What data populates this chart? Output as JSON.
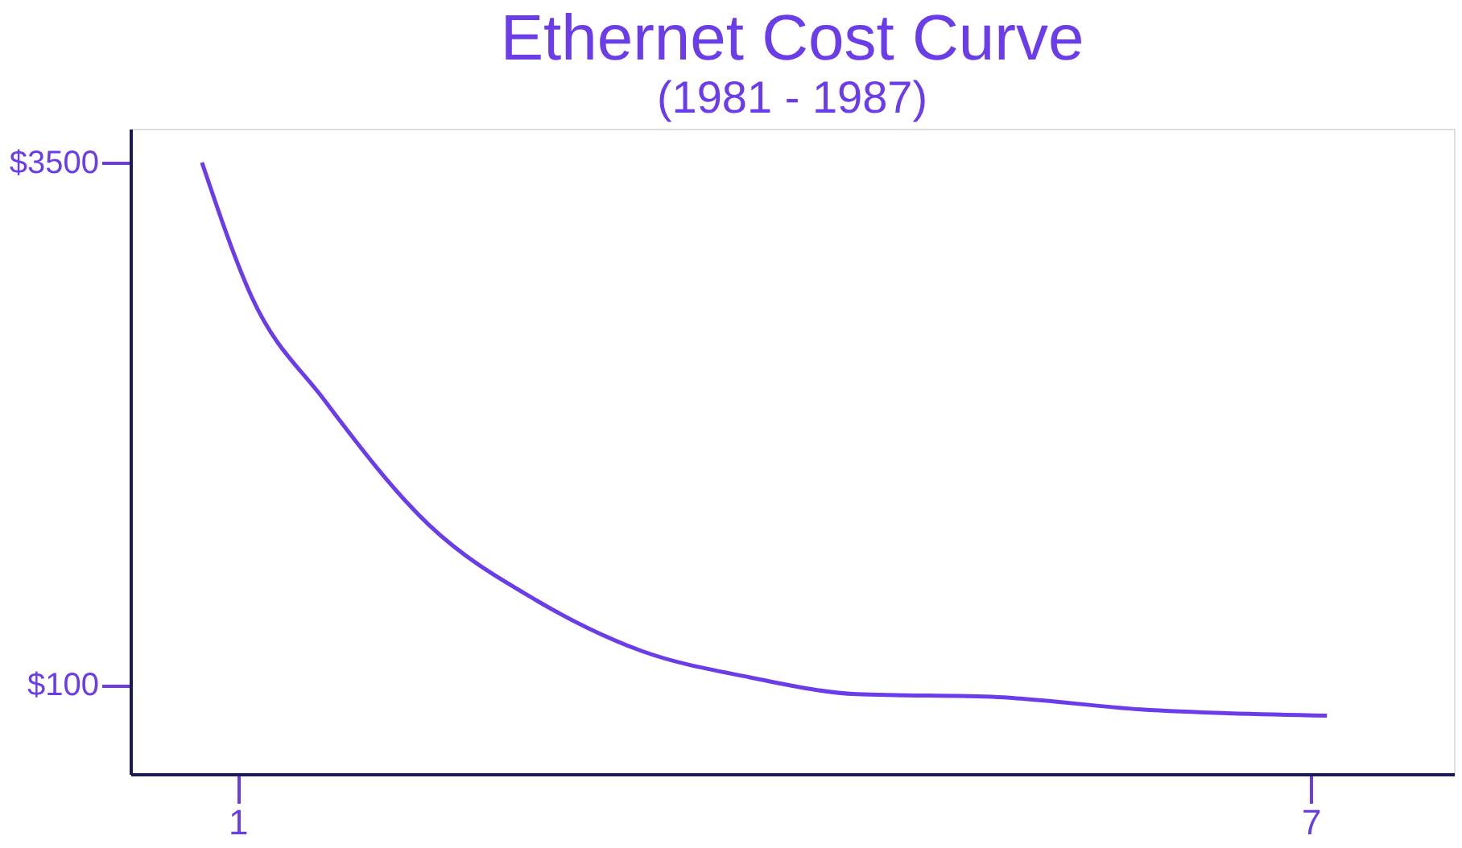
{
  "chart_data": {
    "type": "line",
    "title": "Ethernet Cost Curve",
    "subtitle": "(1981 - 1987)",
    "x": [
      0.8,
      1.08,
      1.48,
      2.07,
      2.67,
      3.26,
      3.86,
      4.46,
      5.25,
      6.05,
      7.09
    ],
    "series": [
      {
        "color": "#6a3de8",
        "values": [
          3500,
          2620,
          1960,
          1140,
          650,
          320,
          150,
          40,
          20,
          -60,
          -100
        ]
      }
    ],
    "xlim": [
      0.4,
      7.8
    ],
    "ylim": [
      -480,
      3720
    ],
    "xticks": [
      1,
      7
    ],
    "yticks": [
      {
        "value": 3500,
        "label": "$3500"
      },
      {
        "value": 100,
        "label": "$100"
      }
    ],
    "grid": false,
    "marker": "none",
    "line_style": "solid"
  }
}
